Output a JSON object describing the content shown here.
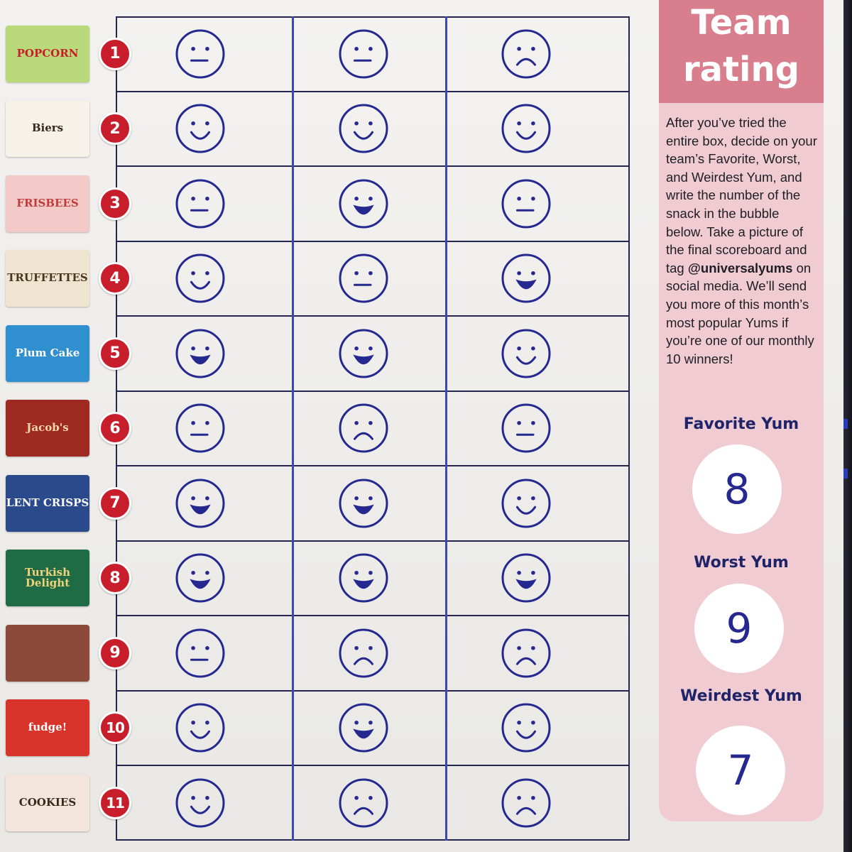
{
  "rows": [
    {
      "number": "1",
      "snack_label": "POPCORN",
      "thumb_bg": "#b9d97a",
      "thumb_fg": "#c81e2b"
    },
    {
      "number": "2",
      "snack_label": "Biers",
      "thumb_bg": "#f6f2ea",
      "thumb_fg": "#3a2a1a"
    },
    {
      "number": "3",
      "snack_label": "FRISBEES",
      "thumb_bg": "#f3c9c8",
      "thumb_fg": "#c23b3b"
    },
    {
      "number": "4",
      "snack_label": "TRUFFETTES",
      "thumb_bg": "#efe4cf",
      "thumb_fg": "#4a3520"
    },
    {
      "number": "5",
      "snack_label": "Plum Cake",
      "thumb_bg": "#2f8fcf",
      "thumb_fg": "#ffffff"
    },
    {
      "number": "6",
      "snack_label": "Jacob's",
      "thumb_bg": "#9e2a22",
      "thumb_fg": "#f4d9a8"
    },
    {
      "number": "7",
      "snack_label": "LENT CRISPS",
      "thumb_bg": "#2a4a8c",
      "thumb_fg": "#ffffff"
    },
    {
      "number": "8",
      "snack_label": "Turkish Delight",
      "thumb_bg": "#1f6b46",
      "thumb_fg": "#f0d27a"
    },
    {
      "number": "9",
      "snack_label": "",
      "thumb_bg": "#8c4a3a",
      "thumb_fg": "#ffffff"
    },
    {
      "number": "10",
      "snack_label": "fudge!",
      "thumb_bg": "#d9342b",
      "thumb_fg": "#ffffff"
    },
    {
      "number": "11",
      "snack_label": "COOKIES",
      "thumb_bg": "#f3e4dc",
      "thumb_fg": "#3a2a1a"
    }
  ],
  "ratings": [
    [
      "neutral",
      "neutral",
      "sad"
    ],
    [
      "happy",
      "happy",
      "happy"
    ],
    [
      "neutral",
      "laugh",
      "neutral"
    ],
    [
      "happy",
      "neutral",
      "laugh"
    ],
    [
      "laugh",
      "laugh",
      "happy"
    ],
    [
      "neutral",
      "sad",
      "neutral"
    ],
    [
      "laugh",
      "laugh",
      "happy"
    ],
    [
      "laugh",
      "laugh",
      "laugh"
    ],
    [
      "neutral",
      "sad",
      "sad"
    ],
    [
      "happy",
      "laugh",
      "happy"
    ],
    [
      "happy",
      "sad",
      "sad"
    ]
  ],
  "sidebar": {
    "title_line1": "Team",
    "title_line2": "rating",
    "text_before_handle": "After you’ve tried the entire box, decide on your team’s Favorite, Worst, and Weirdest Yum, and write the number of the snack in the bubble below. Take a picture of the final scoreboard and tag ",
    "handle": "@universalyums",
    "text_after_handle": " on social media. We’ll send you more of this month’s most popular Yums if you’re one of our monthly 10 winners!",
    "favorite_label": "Favorite Yum",
    "favorite_value": "8",
    "worst_label": "Worst Yum",
    "worst_value": "9",
    "weirdest_label": "Weirdest Yum",
    "weirdest_value": "7"
  },
  "colors": {
    "ink": "#25288f",
    "badge": "#c81e2b",
    "panel_header": "#d97e8d",
    "panel_body": "#f1cbd2",
    "label_navy": "#1f2468"
  }
}
